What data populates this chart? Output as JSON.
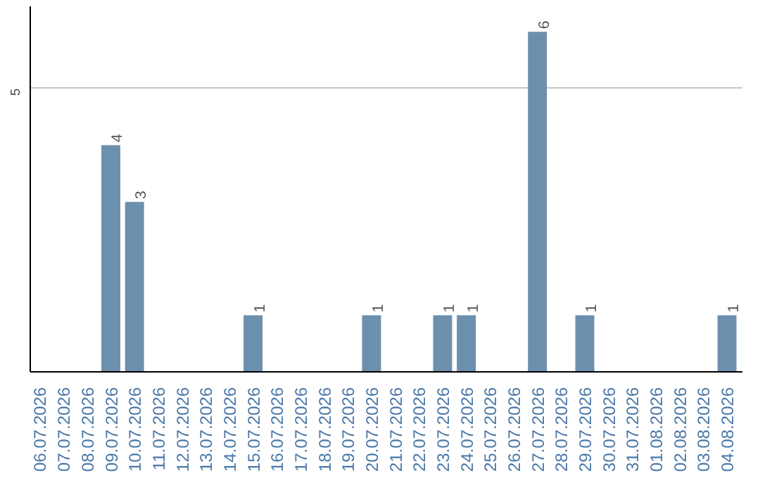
{
  "chart_data": {
    "type": "bar",
    "categories": [
      "06.07.2026",
      "07.07.2026",
      "08.07.2026",
      "09.07.2026",
      "10.07.2026",
      "11.07.2026",
      "12.07.2026",
      "13.07.2026",
      "14.07.2026",
      "15.07.2026",
      "16.07.2026",
      "17.07.2026",
      "18.07.2026",
      "19.07.2026",
      "20.07.2026",
      "21.07.2026",
      "22.07.2026",
      "23.07.2026",
      "24.07.2026",
      "25.07.2026",
      "26.07.2026",
      "27.07.2026",
      "28.07.2026",
      "29.07.2026",
      "30.07.2026",
      "31.07.2026",
      "01.08.2026",
      "02.08.2026",
      "03.08.2026",
      "04.08.2026"
    ],
    "values": [
      0,
      0,
      0,
      4,
      3,
      0,
      0,
      0,
      0,
      1,
      0,
      0,
      0,
      0,
      1,
      0,
      0,
      1,
      1,
      0,
      0,
      6,
      0,
      1,
      0,
      0,
      0,
      0,
      0,
      1
    ],
    "value_labels": [
      null,
      null,
      null,
      "4",
      "3",
      null,
      null,
      null,
      null,
      "1",
      null,
      null,
      null,
      null,
      "1",
      null,
      null,
      "1",
      "1",
      null,
      null,
      "6",
      null,
      "1",
      null,
      null,
      null,
      null,
      null,
      "1"
    ],
    "color": "#6d8fae",
    "ylim": [
      0,
      6.45
    ],
    "yticks": [
      5
    ],
    "grid": "y"
  }
}
